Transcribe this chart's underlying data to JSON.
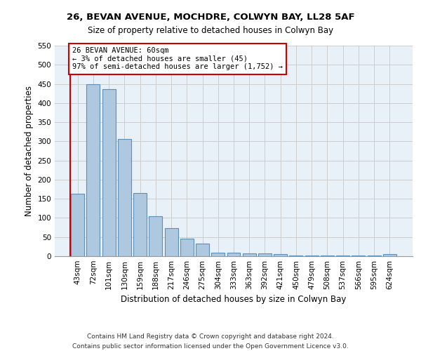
{
  "title1": "26, BEVAN AVENUE, MOCHDRE, COLWYN BAY, LL28 5AF",
  "title2": "Size of property relative to detached houses in Colwyn Bay",
  "xlabel": "Distribution of detached houses by size in Colwyn Bay",
  "ylabel": "Number of detached properties",
  "footer1": "Contains HM Land Registry data © Crown copyright and database right 2024.",
  "footer2": "Contains public sector information licensed under the Open Government Licence v3.0.",
  "categories": [
    "43sqm",
    "72sqm",
    "101sqm",
    "130sqm",
    "159sqm",
    "188sqm",
    "217sqm",
    "246sqm",
    "275sqm",
    "304sqm",
    "333sqm",
    "363sqm",
    "392sqm",
    "421sqm",
    "450sqm",
    "479sqm",
    "508sqm",
    "537sqm",
    "566sqm",
    "595sqm",
    "624sqm"
  ],
  "values": [
    163,
    450,
    437,
    307,
    165,
    105,
    74,
    45,
    33,
    10,
    10,
    8,
    8,
    5,
    2,
    2,
    2,
    2,
    2,
    2,
    5
  ],
  "bar_color": "#aec8e0",
  "bar_edge_color": "#5c8fba",
  "annotation_text_line1": "26 BEVAN AVENUE: 60sqm",
  "annotation_text_line2": "← 3% of detached houses are smaller (45)",
  "annotation_text_line3": "97% of semi-detached houses are larger (1,752) →",
  "ref_line_color": "#cc0000",
  "ylim": [
    0,
    550
  ],
  "yticks": [
    0,
    50,
    100,
    150,
    200,
    250,
    300,
    350,
    400,
    450,
    500,
    550
  ],
  "background_color": "#ffffff",
  "axes_bg_color": "#e8f0f8",
  "grid_color": "#cccccc",
  "title1_fontsize": 9.5,
  "title2_fontsize": 8.5,
  "ylabel_fontsize": 8.5,
  "xlabel_fontsize": 8.5,
  "tick_fontsize": 7.5,
  "footer_fontsize": 6.5
}
